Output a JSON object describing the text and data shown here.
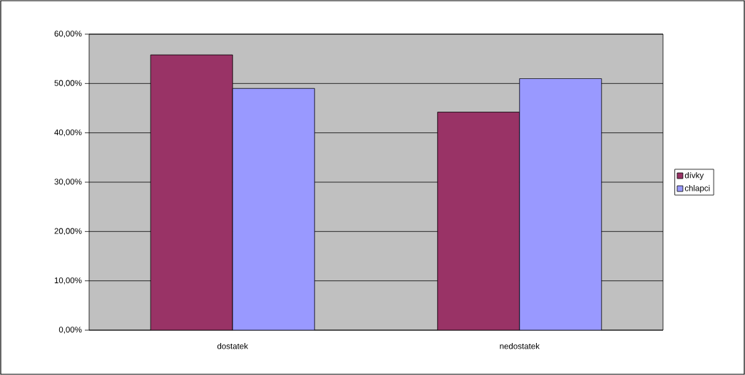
{
  "chart_data": {
    "type": "bar",
    "categories": [
      "dostatek",
      "nedostatek"
    ],
    "series": [
      {
        "name": "dívky",
        "color": "#993366",
        "values": [
          55.8,
          44.2
        ]
      },
      {
        "name": "chlapci",
        "color": "#9999ff",
        "values": [
          49.0,
          51.0
        ]
      }
    ],
    "ylim": [
      0,
      60
    ],
    "yticks": [
      {
        "value": 0,
        "label": "0,00%"
      },
      {
        "value": 10,
        "label": "10,00%"
      },
      {
        "value": 20,
        "label": "20,00%"
      },
      {
        "value": 30,
        "label": "30,00%"
      },
      {
        "value": 40,
        "label": "40,00%"
      },
      {
        "value": 50,
        "label": "50,00%"
      },
      {
        "value": 60,
        "label": "60,00%"
      }
    ],
    "grid": "y",
    "legend": "right"
  }
}
